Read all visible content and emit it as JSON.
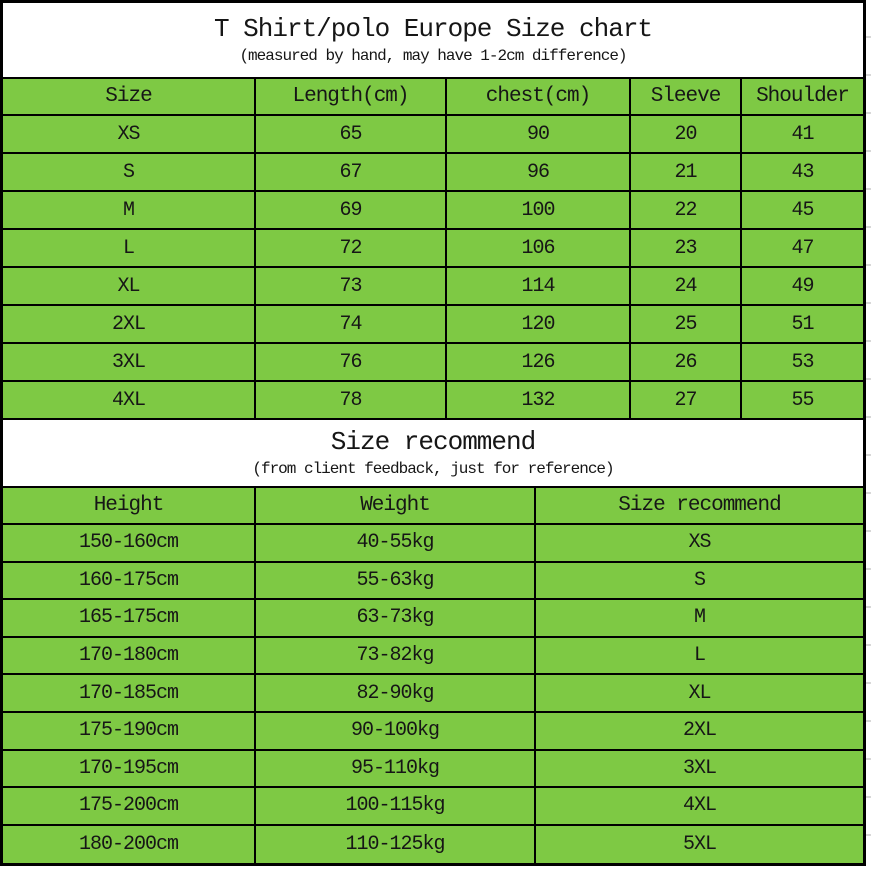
{
  "colors": {
    "table_green": "#7ec944",
    "border_black": "#000000",
    "band_white": "#ffffff",
    "text": "#161616"
  },
  "chart_data": [
    {
      "type": "table",
      "title": "T Shirt/polo Europe Size chart",
      "subtitle": "(measured by hand, may have 1-2cm difference)",
      "columns": [
        "Size",
        "Length(cm)",
        "chest(cm)",
        "Sleeve",
        "Shoulder"
      ],
      "rows": [
        [
          "XS",
          "65",
          "90",
          "20",
          "41"
        ],
        [
          "S",
          "67",
          "96",
          "21",
          "43"
        ],
        [
          "M",
          "69",
          "100",
          "22",
          "45"
        ],
        [
          "L",
          "72",
          "106",
          "23",
          "47"
        ],
        [
          "XL",
          "73",
          "114",
          "24",
          "49"
        ],
        [
          "2XL",
          "74",
          "120",
          "25",
          "51"
        ],
        [
          "3XL",
          "76",
          "126",
          "26",
          "53"
        ],
        [
          "4XL",
          "78",
          "132",
          "27",
          "55"
        ]
      ]
    },
    {
      "type": "table",
      "title": "Size recommend",
      "subtitle": "(from client feedback, just for reference)",
      "columns": [
        "Height",
        "Weight",
        "Size recommend"
      ],
      "rows": [
        [
          "150-160cm",
          "40-55kg",
          "XS"
        ],
        [
          "160-175cm",
          "55-63kg",
          "S"
        ],
        [
          "165-175cm",
          "63-73kg",
          "M"
        ],
        [
          "170-180cm",
          "73-82kg",
          "L"
        ],
        [
          "170-185cm",
          "82-90kg",
          "XL"
        ],
        [
          "175-190cm",
          "90-100kg",
          "2XL"
        ],
        [
          "170-195cm",
          "95-110kg",
          "3XL"
        ],
        [
          "175-200cm",
          "100-115kg",
          "4XL"
        ],
        [
          "180-200cm",
          "110-125kg",
          "5XL"
        ]
      ]
    }
  ]
}
